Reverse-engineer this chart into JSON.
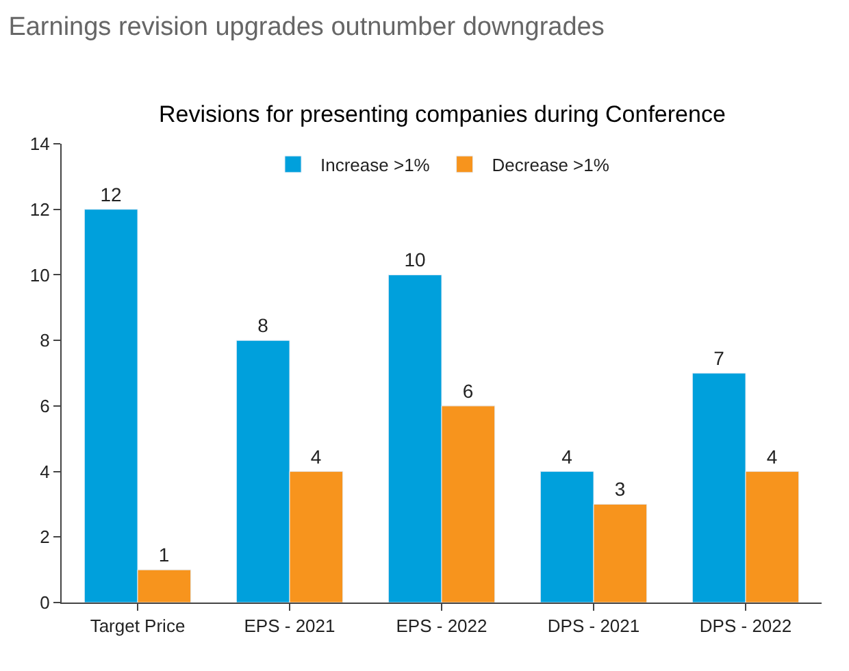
{
  "chart_data": {
    "type": "bar",
    "title": "Earnings revision upgrades outnumber downgrades",
    "subtitle": "Revisions for presenting companies during Conference",
    "categories": [
      "Target Price",
      "EPS - 2021",
      "EPS - 2022",
      "DPS - 2021",
      "DPS - 2022"
    ],
    "series": [
      {
        "name": "Increase >1%",
        "color": "#00a0dc",
        "values": [
          12,
          8,
          10,
          4,
          7
        ]
      },
      {
        "name": "Decrease >1%",
        "color": "#f7941d",
        "values": [
          1,
          4,
          6,
          3,
          4
        ]
      }
    ],
    "ylim": [
      0,
      14
    ],
    "yticks": [
      0,
      2,
      4,
      6,
      8,
      10,
      12,
      14
    ],
    "legend": "top",
    "data_labels": true
  }
}
